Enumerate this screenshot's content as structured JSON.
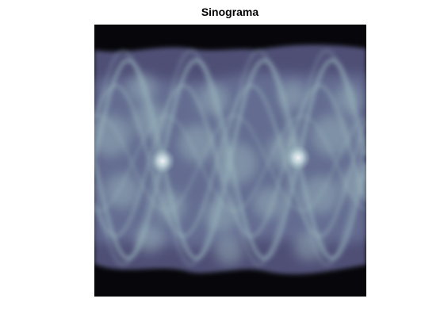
{
  "figure": {
    "title": "Sinograma"
  },
  "image": {
    "colormap": "bone",
    "colormap_dark": "#000000",
    "colormap_mid": "#59598a",
    "colormap_light": "#a6c6c6",
    "colormap_peak": "#ffffff"
  }
}
